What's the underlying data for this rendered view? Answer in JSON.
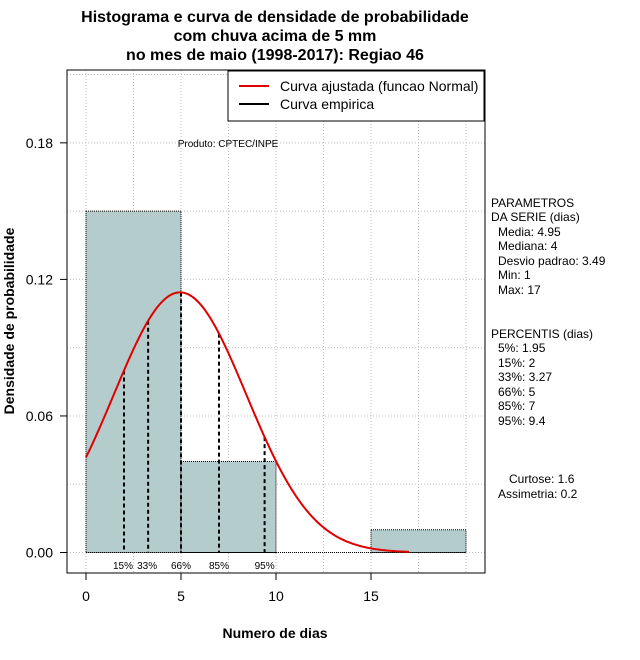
{
  "chart_data": {
    "type": "histogram",
    "title_lines": [
      "Histograma e curva de densidade de probabilidade",
      "com chuva acima de 5 mm",
      "no mes de maio (1998-2017): Regiao 46"
    ],
    "xlabel": "Numero de dias",
    "ylabel": "Densidade de probabilidade",
    "xlim": [
      -1,
      21
    ],
    "ylim": [
      -0.009,
      0.212
    ],
    "x_ticks": [
      0,
      5,
      10,
      15
    ],
    "y_ticks": [
      0.0,
      0.06,
      0.12,
      0.18
    ],
    "y_tick_labels": [
      "0.00",
      "0.06",
      "0.12",
      "0.18"
    ],
    "grid": true,
    "bins": [
      {
        "x0": 0,
        "x1": 5,
        "density": 0.15
      },
      {
        "x0": 5,
        "x1": 10,
        "density": 0.04
      },
      {
        "x0": 10,
        "x1": 15,
        "density": 0.0
      },
      {
        "x0": 15,
        "x1": 20,
        "density": 0.01
      }
    ],
    "normal_fit": {
      "mean": 4.95,
      "sd": 3.49,
      "x_from": 0,
      "x_to": 17
    },
    "percentile_markers": [
      {
        "label": "15%",
        "x": 2
      },
      {
        "label": "33%",
        "x": 3.27
      },
      {
        "label": "66%",
        "x": 5
      },
      {
        "label": "85%",
        "x": 7
      },
      {
        "label": "95%",
        "x": 9.4
      }
    ],
    "legend": {
      "position": "top-right",
      "entries": [
        {
          "label": "Curva ajustada (funcao Normal)",
          "color": "#e00000"
        },
        {
          "label": "Curva empirica",
          "color": "#000000"
        }
      ]
    },
    "annotation": "Produto: CPTEC/INPE",
    "colors": {
      "bar_fill": "#b5cccc",
      "fit_line": "#e00000",
      "axis": "#000000",
      "grid": "#bdbdbd"
    }
  },
  "stats_panel": {
    "params_header_1": "PARAMETROS",
    "params_header_2": "DA SERIE (dias)",
    "params": [
      "Media: 4.95",
      "Mediana: 4",
      "Desvio padrao: 3.49",
      "Min: 1",
      "Max: 17"
    ],
    "percentis_header": "PERCENTIS (dias)",
    "percentis": [
      "5%: 1.95",
      "15%: 2",
      "33%: 3.27",
      "66%: 5",
      "85%: 7",
      "95%: 9.4"
    ],
    "curtose": "Curtose: 1.6",
    "assimetria": "Assimetria: 0.2"
  }
}
